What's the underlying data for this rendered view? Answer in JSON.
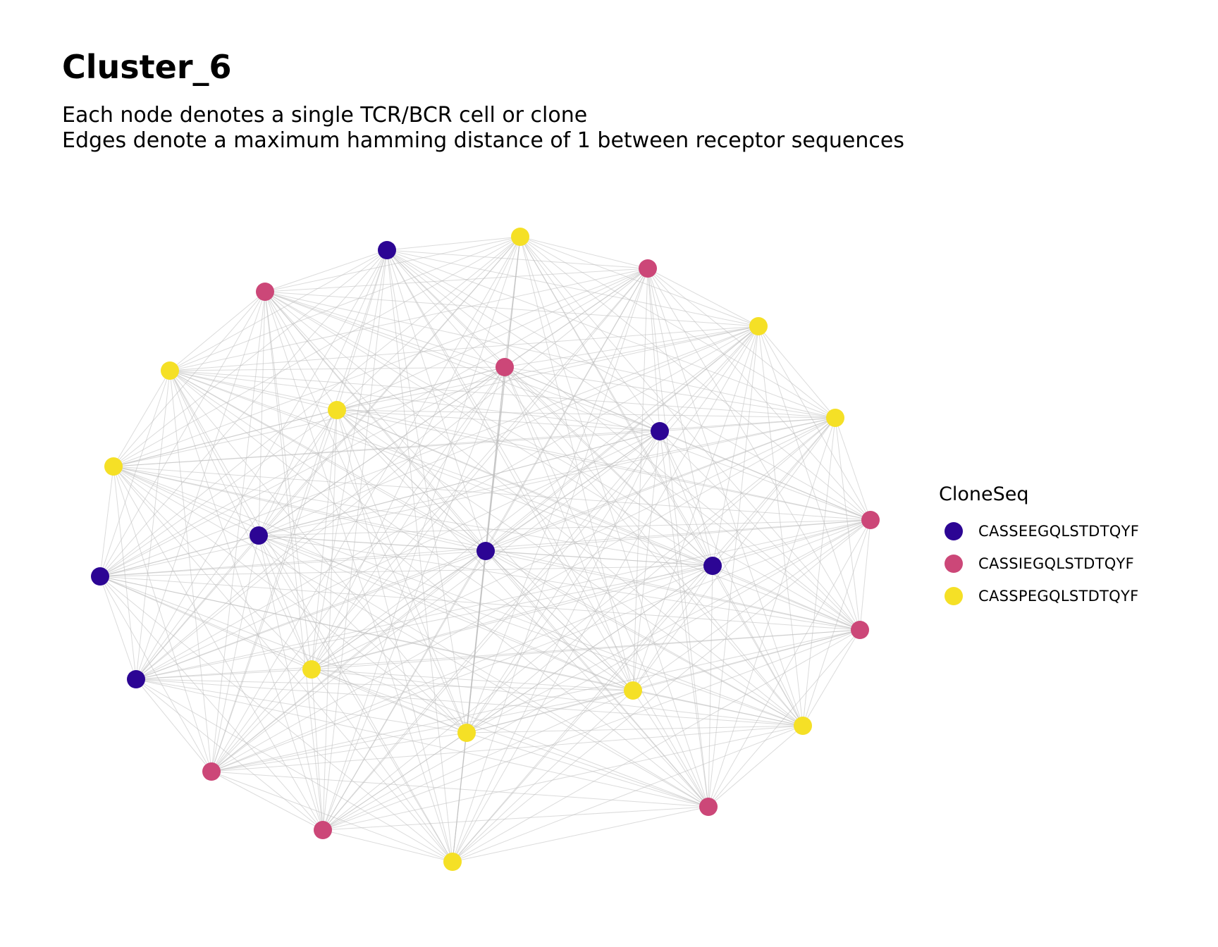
{
  "title": "Cluster_6",
  "subtitle_lines": [
    "Each node denotes a single TCR/BCR cell or clone",
    "Edges denote a maximum hamming distance of 1 between receptor sequences"
  ],
  "legend": {
    "title": "CloneSeq",
    "items": [
      {
        "label": "CASSEEGQLSTDTQYF",
        "color": "#2c0594"
      },
      {
        "label": "CASSIEGQLSTDTQYF",
        "color": "#cc4778"
      },
      {
        "label": "CASSPEGQLSTDTQYF",
        "color": "#f5e026"
      }
    ]
  },
  "edge_color": "#bdbdbd",
  "nodes": [
    {
      "id": "n1",
      "seq": 2
    },
    {
      "id": "n2",
      "seq": 0
    },
    {
      "id": "n3",
      "seq": 1
    },
    {
      "id": "n4",
      "seq": 2
    },
    {
      "id": "n5",
      "seq": 1
    },
    {
      "id": "n6",
      "seq": 2
    },
    {
      "id": "n7",
      "seq": 2
    },
    {
      "id": "n8",
      "seq": 2
    },
    {
      "id": "n9",
      "seq": 1
    },
    {
      "id": "n10",
      "seq": 2
    },
    {
      "id": "n11",
      "seq": 0
    },
    {
      "id": "n12",
      "seq": 0
    },
    {
      "id": "n13",
      "seq": 1
    },
    {
      "id": "n14",
      "seq": 1
    },
    {
      "id": "n15",
      "seq": 0
    },
    {
      "id": "n16",
      "seq": 0
    },
    {
      "id": "n17",
      "seq": 0
    },
    {
      "id": "n18",
      "seq": 2
    },
    {
      "id": "n19",
      "seq": 2
    },
    {
      "id": "n20",
      "seq": 2
    },
    {
      "id": "n21",
      "seq": 0
    },
    {
      "id": "n22",
      "seq": 2
    },
    {
      "id": "n23",
      "seq": 1
    },
    {
      "id": "n24",
      "seq": 1
    },
    {
      "id": "n25",
      "seq": 2
    },
    {
      "id": "n26",
      "seq": 1
    }
  ]
}
